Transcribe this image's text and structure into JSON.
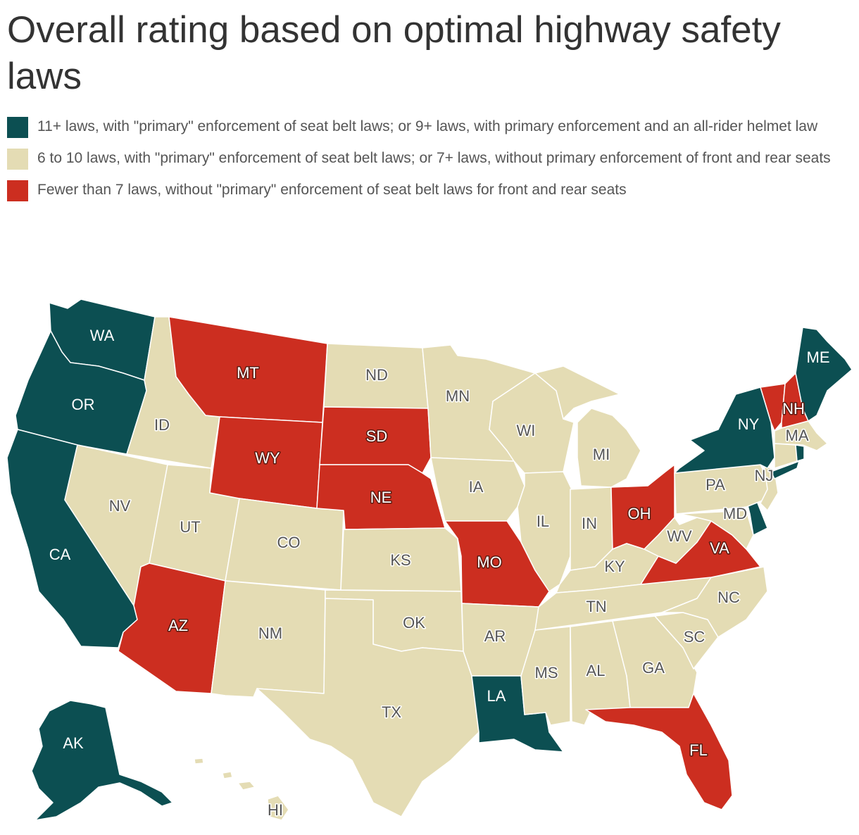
{
  "title": "Overall rating based on optimal highway safety laws",
  "legend": [
    {
      "key": "good",
      "color": "#0c4f52",
      "label": "11+ laws, with \"primary\" enforcement of seat belt laws; or 9+ laws, with primary enforcement and an all-rider helmet law"
    },
    {
      "key": "mid",
      "color": "#e4dcb4",
      "label": "6 to 10 laws, with \"primary\" enforcement of seat belt laws; or 7+ laws, without primary enforcement of front and rear seats"
    },
    {
      "key": "bad",
      "color": "#cc2e20",
      "label": "Fewer than 7 laws, without \"primary\" enforcement of seat belt laws for front and rear seats"
    }
  ],
  "states": {
    "WA": "good",
    "OR": "good",
    "CA": "good",
    "AK": "good",
    "NY": "good",
    "ME": "good",
    "LA": "good",
    "DE": "good",
    "RI": "good",
    "MT": "bad",
    "WY": "bad",
    "SD": "bad",
    "NE": "bad",
    "AZ": "bad",
    "MO": "bad",
    "OH": "bad",
    "VA": "bad",
    "FL": "bad",
    "NH": "bad",
    "VT": "bad",
    "ID": "mid",
    "NV": "mid",
    "UT": "mid",
    "CO": "mid",
    "NM": "mid",
    "ND": "mid",
    "KS": "mid",
    "OK": "mid",
    "TX": "mid",
    "MN": "mid",
    "IA": "mid",
    "AR": "mid",
    "WI": "mid",
    "IL": "mid",
    "MI": "mid",
    "IN": "mid",
    "KY": "mid",
    "TN": "mid",
    "MS": "mid",
    "AL": "mid",
    "GA": "mid",
    "SC": "mid",
    "NC": "mid",
    "WV": "mid",
    "MD": "mid",
    "PA": "mid",
    "NJ": "mid",
    "MA": "mid",
    "CT": "mid",
    "HI": "mid"
  },
  "labels": {
    "WA": "WA",
    "OR": "OR",
    "CA": "CA",
    "AK": "AK",
    "HI": "HI",
    "ID": "ID",
    "NV": "NV",
    "UT": "UT",
    "AZ": "AZ",
    "MT": "MT",
    "WY": "WY",
    "CO": "CO",
    "NM": "NM",
    "ND": "ND",
    "SD": "SD",
    "NE": "NE",
    "KS": "KS",
    "OK": "OK",
    "TX": "TX",
    "MN": "MN",
    "IA": "IA",
    "MO": "MO",
    "AR": "AR",
    "LA": "LA",
    "WI": "WI",
    "IL": "IL",
    "MI": "MI",
    "IN": "IN",
    "KY": "KY",
    "TN": "TN",
    "MS": "MS",
    "AL": "AL",
    "GA": "GA",
    "FL": "FL",
    "SC": "SC",
    "NC": "NC",
    "OH": "OH",
    "WV": "WV",
    "VA": "VA",
    "MD": "MD",
    "PA": "PA",
    "NJ": "NJ",
    "NY": "NY",
    "MA": "MA",
    "NH": "NH",
    "ME": "ME"
  }
}
